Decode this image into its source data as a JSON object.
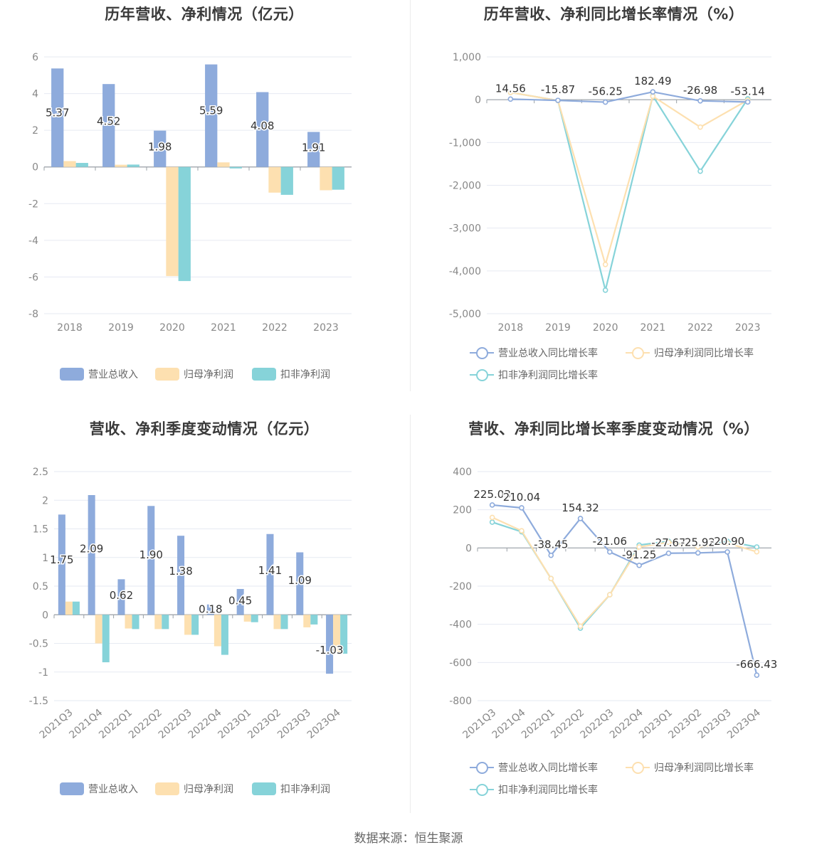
{
  "colors": {
    "revenue": "#8eabdc",
    "parent_profit": "#fde0b0",
    "deducted_profit": "#86d3d9",
    "axis": "#9aa0a6",
    "grid": "#e6eaf2",
    "tick_text": "#888888",
    "label_text": "#333333"
  },
  "source": "数据来源：恒生聚源",
  "charts": {
    "annual_values": {
      "title": "历年营收、净利情况（亿元）",
      "legend": [
        "营业总收入",
        "归母净利润",
        "扣非净利润"
      ],
      "y_ticks": [
        "6",
        "4",
        "2",
        "0",
        "-2",
        "-4",
        "-6",
        "-8"
      ]
    },
    "annual_growth": {
      "title": "历年营收、净利同比增长率情况（%）",
      "legend": [
        "营业总收入同比增长率",
        "归母净利润同比增长率",
        "扣非净利润同比增长率"
      ],
      "y_ticks": [
        "1,000",
        "0",
        "-1,000",
        "-2,000",
        "-3,000",
        "-4,000",
        "-5,000"
      ]
    },
    "quarterly_values": {
      "title": "营收、净利季度变动情况（亿元）",
      "legend": [
        "营业总收入",
        "归母净利润",
        "扣非净利润"
      ],
      "y_ticks": [
        "2.5",
        "2",
        "1.5",
        "1",
        "0.5",
        "0",
        "-0.5",
        "-1",
        "-1.5"
      ]
    },
    "quarterly_growth": {
      "title": "营收、净利同比增长率季度变动情况（%）",
      "legend": [
        "营业总收入同比增长率",
        "归母净利润同比增长率",
        "扣非净利润同比增长率"
      ],
      "y_ticks": [
        "400",
        "200",
        "0",
        "-200",
        "-400",
        "-600",
        "-800"
      ]
    }
  },
  "chart_data": [
    {
      "type": "bar",
      "title": "历年营收、净利情况（亿元）",
      "categories": [
        "2018",
        "2019",
        "2020",
        "2021",
        "2022",
        "2023"
      ],
      "ylim": [
        -8,
        6
      ],
      "grid": true,
      "legend_position": "bottom",
      "series": [
        {
          "name": "营业总收入",
          "values": [
            5.37,
            4.52,
            1.98,
            5.59,
            4.08,
            1.91
          ],
          "labels": [
            "5.37",
            "4.52",
            "1.98",
            "5.59",
            "4.08",
            "1.91"
          ]
        },
        {
          "name": "归母净利润",
          "values": [
            0.32,
            0.12,
            -5.95,
            0.25,
            -1.4,
            -1.27
          ]
        },
        {
          "name": "扣非净利润",
          "values": [
            0.22,
            0.13,
            -6.22,
            -0.08,
            -1.52,
            -1.24
          ]
        }
      ]
    },
    {
      "type": "line",
      "title": "历年营收、净利同比增长率情况（%）",
      "categories": [
        "2018",
        "2019",
        "2020",
        "2021",
        "2022",
        "2023"
      ],
      "ylim": [
        -5000,
        1000
      ],
      "grid": true,
      "legend_position": "bottom",
      "series": [
        {
          "name": "营业总收入同比增长率",
          "values": [
            14.56,
            -15.87,
            -56.25,
            182.49,
            -26.98,
            -53.14
          ],
          "labels": [
            "14.56",
            "-15.87",
            "-56.25",
            "182.49",
            "-26.98",
            "-53.14"
          ]
        },
        {
          "name": "归母净利润同比增长率",
          "values": [
            170,
            -20,
            -3850,
            80,
            -640,
            -10
          ]
        },
        {
          "name": "扣非净利润同比增长率",
          "values": [
            170,
            -20,
            -4450,
            90,
            -1670,
            20
          ]
        }
      ]
    },
    {
      "type": "bar",
      "title": "营收、净利季度变动情况（亿元）",
      "categories": [
        "2021Q3",
        "2021Q4",
        "2022Q1",
        "2022Q2",
        "2022Q3",
        "2022Q4",
        "2023Q1",
        "2023Q2",
        "2023Q3",
        "2023Q4"
      ],
      "ylim": [
        -1.5,
        2.5
      ],
      "grid": true,
      "legend_position": "bottom",
      "series": [
        {
          "name": "营业总收入",
          "values": [
            1.75,
            2.09,
            0.62,
            1.9,
            1.38,
            0.18,
            0.45,
            1.41,
            1.09,
            -1.03
          ],
          "labels": [
            "1.75",
            "2.09",
            "0.62",
            "1.90",
            "1.38",
            "0.18",
            "0.45",
            "1.41",
            "1.09",
            "-1.03"
          ]
        },
        {
          "name": "归母净利润",
          "values": [
            0.23,
            -0.5,
            -0.24,
            -0.25,
            -0.35,
            -0.55,
            -0.12,
            -0.25,
            -0.22,
            -0.65
          ]
        },
        {
          "name": "扣非净利润",
          "values": [
            0.23,
            -0.83,
            -0.25,
            -0.25,
            -0.35,
            -0.7,
            -0.13,
            -0.25,
            -0.17,
            -0.68
          ]
        }
      ]
    },
    {
      "type": "line",
      "title": "营收、净利同比增长率季度变动情况（%）",
      "categories": [
        "2021Q3",
        "2021Q4",
        "2022Q1",
        "2022Q2",
        "2022Q3",
        "2022Q4",
        "2023Q1",
        "2023Q2",
        "2023Q3",
        "2023Q4"
      ],
      "ylim": [
        -800,
        400
      ],
      "grid": true,
      "legend_position": "bottom",
      "series": [
        {
          "name": "营业总收入同比增长率",
          "values": [
            225.03,
            210.04,
            -38.45,
            154.32,
            -21.06,
            -91.25,
            -27.67,
            -25.92,
            -20.9,
            -666.43
          ],
          "labels": [
            "225.03",
            "210.04",
            "-38.45",
            "154.32",
            "-21.06",
            "-91.25",
            "-27.67",
            "-25.92",
            "-20.90",
            "-666.43"
          ]
        },
        {
          "name": "归母净利润同比增长率",
          "values": [
            160,
            90,
            -160,
            -410,
            -245,
            5,
            30,
            5,
            25,
            -20
          ]
        },
        {
          "name": "扣非净利润同比增长率",
          "values": [
            135,
            85,
            -160,
            -420,
            -245,
            15,
            35,
            5,
            35,
            5
          ]
        }
      ]
    }
  ]
}
